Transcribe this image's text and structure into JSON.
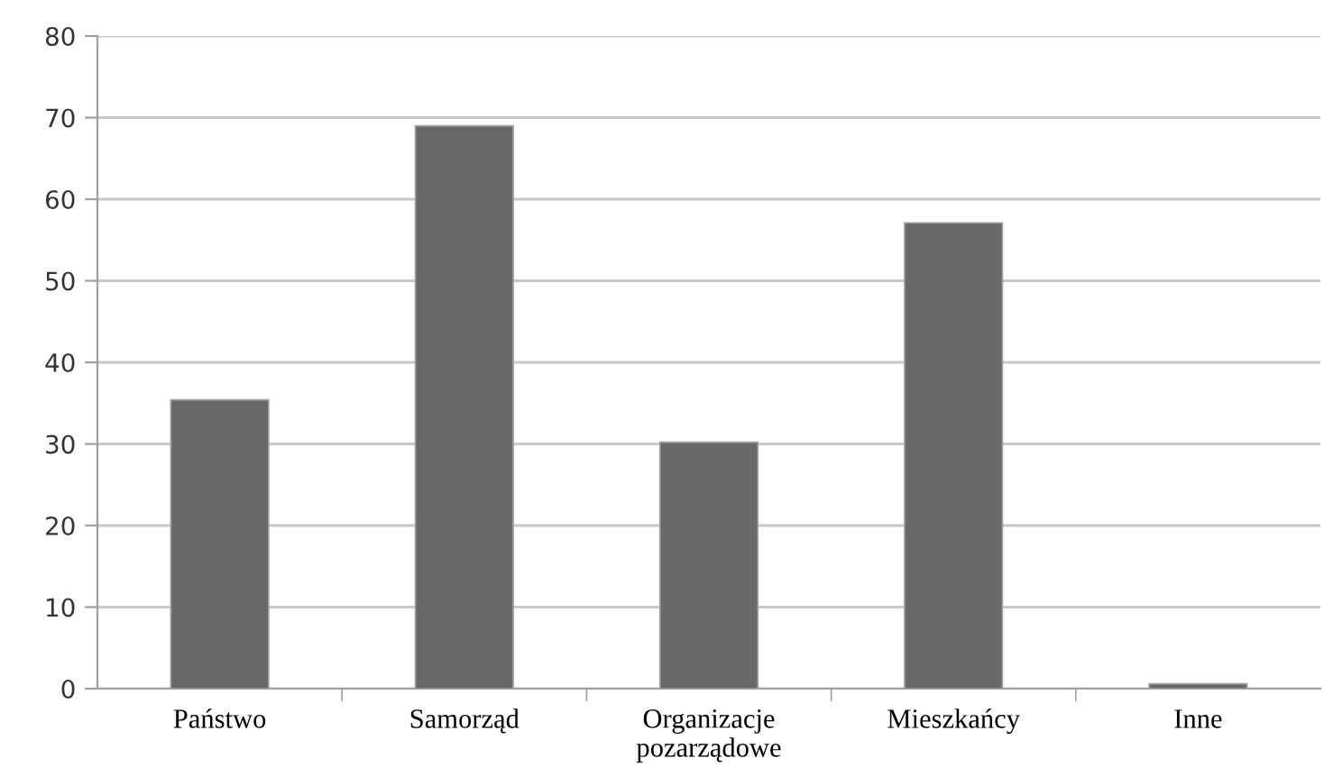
{
  "chart_data": {
    "type": "bar",
    "categories": [
      "Państwo",
      "Samorząd",
      "Organizacje\npozarządowe",
      "Mieszkańcy",
      "Inne"
    ],
    "values": [
      35.4,
      69,
      30.2,
      57.1,
      0.6
    ],
    "color": "#696969",
    "ylim": [
      0,
      80
    ],
    "yticks": [
      0,
      10,
      20,
      30,
      40,
      50,
      60,
      70,
      80
    ],
    "grid": "y",
    "legend": false
  }
}
